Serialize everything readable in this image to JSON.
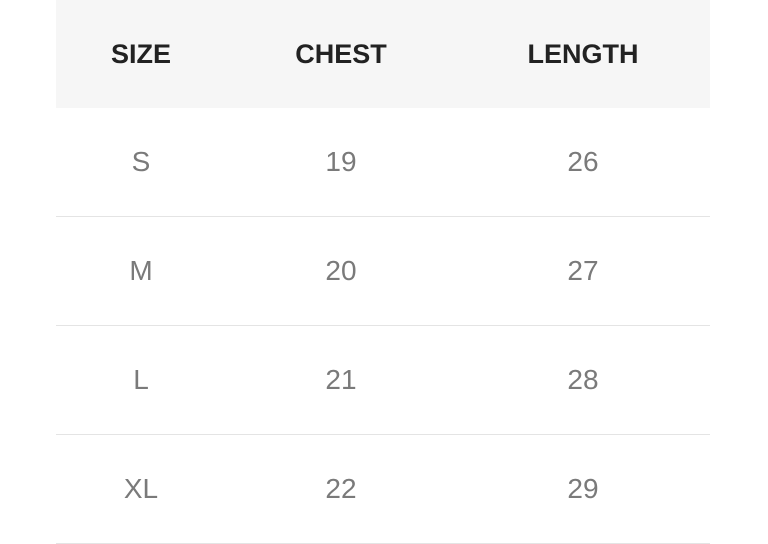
{
  "table": {
    "headers": [
      "SIZE",
      "CHEST",
      "LENGTH"
    ],
    "rows": [
      [
        "S",
        "19",
        "26"
      ],
      [
        "M",
        "20",
        "27"
      ],
      [
        "L",
        "21",
        "28"
      ],
      [
        "XL",
        "22",
        "29"
      ]
    ]
  }
}
